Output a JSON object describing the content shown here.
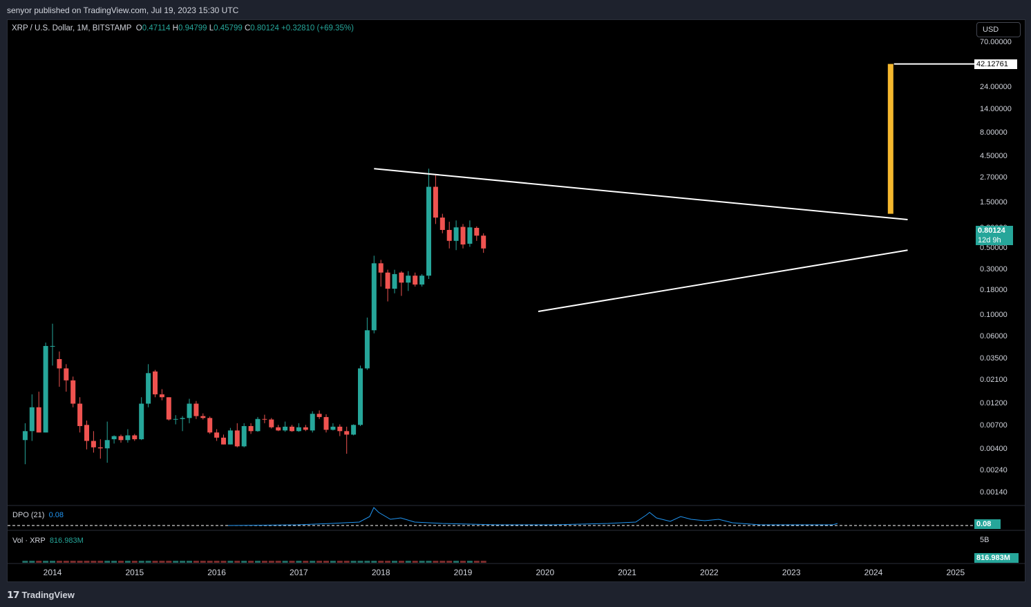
{
  "header": {
    "published_text": "senyor published on TradingView.com, Jul 19, 2023 15:30 UTC"
  },
  "footer": {
    "brand": "TradingView",
    "logo": "𝟭𝟳"
  },
  "legend": {
    "symbol": "XRP / U.S. Dollar, 1M, BITSTAMP",
    "o_label": "O",
    "o_value": "0.47114",
    "h_label": "H",
    "h_value": "0.94799",
    "l_label": "L",
    "l_value": "0.45799",
    "c_label": "C",
    "c_value": "0.80124",
    "change": "+0.32810 (+69.35%)"
  },
  "currency_button": "USD",
  "colors": {
    "up": "#26a69a",
    "down": "#ef5350",
    "projection": "#f5b82e",
    "dpo": "#2196f3",
    "vol_up": "#1f6b63",
    "vol_down": "#7a2b2b"
  },
  "price_axis": {
    "labels": [
      "70.00000",
      "24.00000",
      "14.00000",
      "8.00000",
      "4.50000",
      "2.70000",
      "1.50000",
      "0.80000",
      "0.50000",
      "0.30000",
      "0.18000",
      "0.10000",
      "0.06000",
      "0.03500",
      "0.02100",
      "0.01200",
      "0.00700",
      "0.00400",
      "0.00240",
      "0.00140"
    ],
    "target_tag": "42.12761",
    "last_price_tag": "0.80124",
    "countdown_tag": "12d 9h"
  },
  "dpo": {
    "label": "DPO (21)",
    "value": "0.08",
    "tag": "0.08"
  },
  "volume": {
    "label": "Vol · XRP",
    "value": "816.983M",
    "scale_label": "5B",
    "tag": "816.983M"
  },
  "time_axis": {
    "labels": [
      "2014",
      "2015",
      "2016",
      "2017",
      "2018",
      "2019",
      "2020",
      "2021",
      "2022",
      "2023",
      "2024",
      "2025"
    ]
  },
  "chart_data": {
    "type": "candlestick",
    "symbol": "XRP / U.S. Dollar",
    "interval": "1M",
    "exchange": "BITSTAMP",
    "y_scale": "log",
    "ylim": [
      0.0011,
      100
    ],
    "x_range": [
      "2013-08",
      "2025-01"
    ],
    "candles": [
      {
        "t": "2013-09",
        "o": 0.005,
        "h": 0.0075,
        "l": 0.0028,
        "c": 0.0062
      },
      {
        "t": "2013-10",
        "o": 0.0062,
        "h": 0.015,
        "l": 0.0049,
        "c": 0.011
      },
      {
        "t": "2013-11",
        "o": 0.011,
        "h": 0.016,
        "l": 0.006,
        "c": 0.006
      },
      {
        "t": "2013-12",
        "o": 0.006,
        "h": 0.052,
        "l": 0.006,
        "c": 0.048
      },
      {
        "t": "2014-01",
        "o": 0.048,
        "h": 0.082,
        "l": 0.03,
        "c": 0.048
      },
      {
        "t": "2014-02",
        "o": 0.035,
        "h": 0.042,
        "l": 0.018,
        "c": 0.028
      },
      {
        "t": "2014-03",
        "o": 0.028,
        "h": 0.031,
        "l": 0.016,
        "c": 0.021
      },
      {
        "t": "2014-04",
        "o": 0.021,
        "h": 0.023,
        "l": 0.011,
        "c": 0.012
      },
      {
        "t": "2014-05",
        "o": 0.012,
        "h": 0.014,
        "l": 0.006,
        "c": 0.007
      },
      {
        "t": "2014-06",
        "o": 0.0072,
        "h": 0.008,
        "l": 0.004,
        "c": 0.0049
      },
      {
        "t": "2014-07",
        "o": 0.0049,
        "h": 0.0062,
        "l": 0.0037,
        "c": 0.0042
      },
      {
        "t": "2014-08",
        "o": 0.0042,
        "h": 0.0051,
        "l": 0.0032,
        "c": 0.0041
      },
      {
        "t": "2014-09",
        "o": 0.0041,
        "h": 0.0078,
        "l": 0.0029,
        "c": 0.005
      },
      {
        "t": "2014-10",
        "o": 0.0051,
        "h": 0.0056,
        "l": 0.0046,
        "c": 0.0055
      },
      {
        "t": "2014-11",
        "o": 0.0055,
        "h": 0.0057,
        "l": 0.0047,
        "c": 0.005
      },
      {
        "t": "2014-12",
        "o": 0.005,
        "h": 0.0065,
        "l": 0.0047,
        "c": 0.0056
      },
      {
        "t": "2015-01",
        "o": 0.0056,
        "h": 0.0058,
        "l": 0.0049,
        "c": 0.0051
      },
      {
        "t": "2015-02",
        "o": 0.0051,
        "h": 0.014,
        "l": 0.005,
        "c": 0.012
      },
      {
        "t": "2015-03",
        "o": 0.012,
        "h": 0.031,
        "l": 0.011,
        "c": 0.025
      },
      {
        "t": "2015-04",
        "o": 0.026,
        "h": 0.027,
        "l": 0.014,
        "c": 0.015
      },
      {
        "t": "2015-05",
        "o": 0.015,
        "h": 0.017,
        "l": 0.013,
        "c": 0.014
      },
      {
        "t": "2015-06",
        "o": 0.014,
        "h": 0.014,
        "l": 0.008,
        "c": 0.0082
      },
      {
        "t": "2015-07",
        "o": 0.0082,
        "h": 0.0091,
        "l": 0.0073,
        "c": 0.0083
      },
      {
        "t": "2015-08",
        "o": 0.0083,
        "h": 0.0089,
        "l": 0.0062,
        "c": 0.0085
      },
      {
        "t": "2015-09",
        "o": 0.0085,
        "h": 0.0135,
        "l": 0.0075,
        "c": 0.012
      },
      {
        "t": "2015-10",
        "o": 0.012,
        "h": 0.0128,
        "l": 0.0083,
        "c": 0.0089
      },
      {
        "t": "2015-11",
        "o": 0.0089,
        "h": 0.0095,
        "l": 0.0082,
        "c": 0.0085
      },
      {
        "t": "2015-12",
        "o": 0.0085,
        "h": 0.0088,
        "l": 0.0058,
        "c": 0.006
      },
      {
        "t": "2016-01",
        "o": 0.006,
        "h": 0.0065,
        "l": 0.0049,
        "c": 0.0053
      },
      {
        "t": "2016-02",
        "o": 0.0053,
        "h": 0.0057,
        "l": 0.0045,
        "c": 0.0045
      },
      {
        "t": "2016-03",
        "o": 0.0045,
        "h": 0.0067,
        "l": 0.0045,
        "c": 0.0063
      },
      {
        "t": "2016-04",
        "o": 0.0063,
        "h": 0.0075,
        "l": 0.0042,
        "c": 0.0043
      },
      {
        "t": "2016-05",
        "o": 0.0043,
        "h": 0.0075,
        "l": 0.0042,
        "c": 0.007
      },
      {
        "t": "2016-06",
        "o": 0.007,
        "h": 0.0075,
        "l": 0.0058,
        "c": 0.0062
      },
      {
        "t": "2016-07",
        "o": 0.0062,
        "h": 0.0087,
        "l": 0.0061,
        "c": 0.0083
      },
      {
        "t": "2016-08",
        "o": 0.0083,
        "h": 0.0092,
        "l": 0.0075,
        "c": 0.0082
      },
      {
        "t": "2016-09",
        "o": 0.0082,
        "h": 0.0085,
        "l": 0.0066,
        "c": 0.0068
      },
      {
        "t": "2016-10",
        "o": 0.0068,
        "h": 0.0072,
        "l": 0.0062,
        "c": 0.0063
      },
      {
        "t": "2016-11",
        "o": 0.0063,
        "h": 0.0078,
        "l": 0.0061,
        "c": 0.0069
      },
      {
        "t": "2016-12",
        "o": 0.0069,
        "h": 0.0072,
        "l": 0.0061,
        "c": 0.0062
      },
      {
        "t": "2017-01",
        "o": 0.0062,
        "h": 0.0075,
        "l": 0.0061,
        "c": 0.0068
      },
      {
        "t": "2017-02",
        "o": 0.0068,
        "h": 0.0072,
        "l": 0.0062,
        "c": 0.0064
      },
      {
        "t": "2017-03",
        "o": 0.0063,
        "h": 0.01,
        "l": 0.006,
        "c": 0.0094
      },
      {
        "t": "2017-04",
        "o": 0.0094,
        "h": 0.0102,
        "l": 0.0083,
        "c": 0.0087
      },
      {
        "t": "2017-05",
        "o": 0.0087,
        "h": 0.0093,
        "l": 0.006,
        "c": 0.0064
      },
      {
        "t": "2017-06",
        "o": 0.0064,
        "h": 0.0075,
        "l": 0.0063,
        "c": 0.0069
      },
      {
        "t": "2017-07",
        "o": 0.0069,
        "h": 0.0073,
        "l": 0.0055,
        "c": 0.0062
      },
      {
        "t": "2017-08",
        "o": 0.0062,
        "h": 0.0069,
        "l": 0.0036,
        "c": 0.0057
      },
      {
        "t": "2017-09",
        "o": 0.0057,
        "h": 0.0073,
        "l": 0.0056,
        "c": 0.0072
      },
      {
        "t": "2017-10",
        "o": 0.0072,
        "h": 0.03,
        "l": 0.007,
        "c": 0.028
      },
      {
        "t": "2017-11",
        "o": 0.028,
        "h": 0.095,
        "l": 0.027,
        "c": 0.07
      },
      {
        "t": "2017-12",
        "o": 0.07,
        "h": 0.42,
        "l": 0.065,
        "c": 0.35
      },
      {
        "t": "2018-01",
        "o": 0.35,
        "h": 0.38,
        "l": 0.2,
        "c": 0.28
      },
      {
        "t": "2018-02",
        "o": 0.28,
        "h": 0.3,
        "l": 0.14,
        "c": 0.19
      },
      {
        "t": "2018-03",
        "o": 0.19,
        "h": 0.3,
        "l": 0.17,
        "c": 0.27
      },
      {
        "t": "2018-04",
        "o": 0.28,
        "h": 0.29,
        "l": 0.16,
        "c": 0.22
      },
      {
        "t": "2018-05",
        "o": 0.22,
        "h": 0.29,
        "l": 0.18,
        "c": 0.26
      },
      {
        "t": "2018-06",
        "o": 0.26,
        "h": 0.28,
        "l": 0.2,
        "c": 0.21
      },
      {
        "t": "2018-07",
        "o": 0.21,
        "h": 0.27,
        "l": 0.2,
        "c": 0.26
      },
      {
        "t": "2018-08",
        "o": 0.26,
        "h": 3.4,
        "l": 0.24,
        "c": 2.2
      },
      {
        "t": "2018-09",
        "o": 2.2,
        "h": 2.9,
        "l": 0.9,
        "c": 1.05
      },
      {
        "t": "2018-10",
        "o": 1.05,
        "h": 1.15,
        "l": 0.72,
        "c": 0.78
      },
      {
        "t": "2018-11",
        "o": 0.78,
        "h": 0.95,
        "l": 0.5,
        "c": 0.6
      },
      {
        "t": "2018-12",
        "o": 0.6,
        "h": 0.98,
        "l": 0.48,
        "c": 0.83
      },
      {
        "t": "2019-01",
        "o": 0.84,
        "h": 0.9,
        "l": 0.5,
        "c": 0.55
      },
      {
        "t": "2019-02",
        "o": 0.56,
        "h": 0.98,
        "l": 0.52,
        "c": 0.83
      },
      {
        "t": "2019-03",
        "o": 0.82,
        "h": 0.85,
        "l": 0.6,
        "c": 0.68
      },
      {
        "t": "2019-04",
        "o": 0.68,
        "h": 0.72,
        "l": 0.45,
        "c": 0.5
      }
    ]
  }
}
